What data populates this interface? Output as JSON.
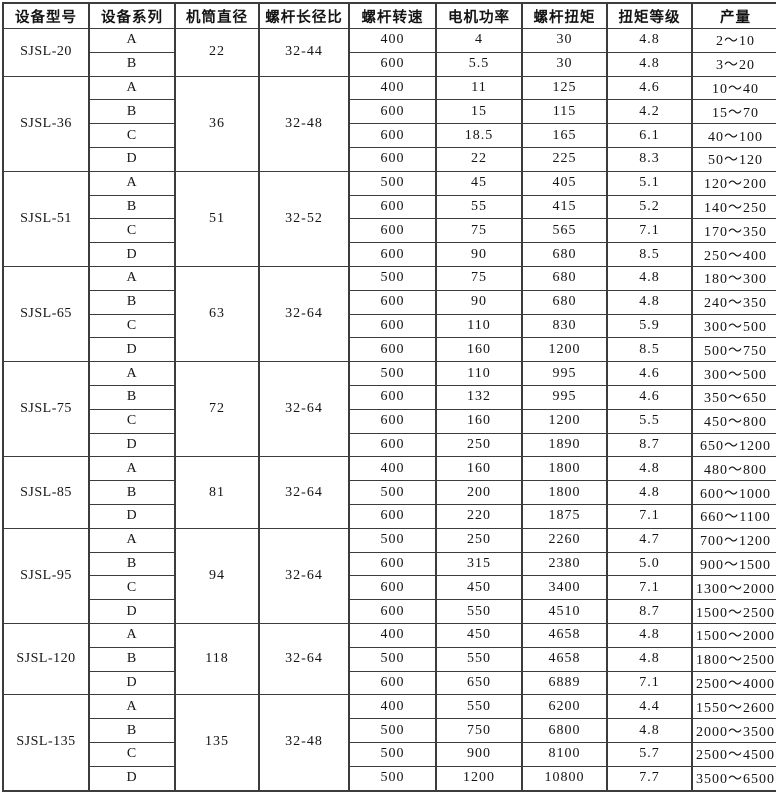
{
  "table": {
    "headers": [
      "设备型号",
      "设备系列",
      "机筒直径",
      "螺杆长径比",
      "螺杆转速",
      "电机功率",
      "螺杆扭矩",
      "扭矩等级",
      "产量"
    ],
    "border_color": "#3c3c3c",
    "background_color": "#ffffff",
    "groups": [
      {
        "model": "SJSL-20",
        "diameter": "22",
        "ratio": "32-44",
        "rows": [
          {
            "series": "A",
            "speed": "400",
            "power": "4",
            "torque": "30",
            "grade": "4.8",
            "output": "2～10"
          },
          {
            "series": "B",
            "speed": "600",
            "power": "5.5",
            "torque": "30",
            "grade": "4.8",
            "output": "3～20"
          }
        ]
      },
      {
        "model": "SJSL-36",
        "diameter": "36",
        "ratio": "32-48",
        "rows": [
          {
            "series": "A",
            "speed": "400",
            "power": "11",
            "torque": "125",
            "grade": "4.6",
            "output": "10～40"
          },
          {
            "series": "B",
            "speed": "600",
            "power": "15",
            "torque": "115",
            "grade": "4.2",
            "output": "15～70"
          },
          {
            "series": "C",
            "speed": "600",
            "power": "18.5",
            "torque": "165",
            "grade": "6.1",
            "output": "40～100"
          },
          {
            "series": "D",
            "speed": "600",
            "power": "22",
            "torque": "225",
            "grade": "8.3",
            "output": "50～120"
          }
        ]
      },
      {
        "model": "SJSL-51",
        "diameter": "51",
        "ratio": "32-52",
        "rows": [
          {
            "series": "A",
            "speed": "500",
            "power": "45",
            "torque": "405",
            "grade": "5.1",
            "output": "120～200"
          },
          {
            "series": "B",
            "speed": "600",
            "power": "55",
            "torque": "415",
            "grade": "5.2",
            "output": "140～250"
          },
          {
            "series": "C",
            "speed": "600",
            "power": "75",
            "torque": "565",
            "grade": "7.1",
            "output": "170～350"
          },
          {
            "series": "D",
            "speed": "600",
            "power": "90",
            "torque": "680",
            "grade": "8.5",
            "output": "250～400"
          }
        ]
      },
      {
        "model": "SJSL-65",
        "diameter": "63",
        "ratio": "32-64",
        "rows": [
          {
            "series": "A",
            "speed": "500",
            "power": "75",
            "torque": "680",
            "grade": "4.8",
            "output": "180～300"
          },
          {
            "series": "B",
            "speed": "600",
            "power": "90",
            "torque": "680",
            "grade": "4.8",
            "output": "240～350"
          },
          {
            "series": "C",
            "speed": "600",
            "power": "110",
            "torque": "830",
            "grade": "5.9",
            "output": "300～500"
          },
          {
            "series": "D",
            "speed": "600",
            "power": "160",
            "torque": "1200",
            "grade": "8.5",
            "output": "500～750"
          }
        ]
      },
      {
        "model": "SJSL-75",
        "diameter": "72",
        "ratio": "32-64",
        "rows": [
          {
            "series": "A",
            "speed": "500",
            "power": "110",
            "torque": "995",
            "grade": "4.6",
            "output": "300～500"
          },
          {
            "series": "B",
            "speed": "600",
            "power": "132",
            "torque": "995",
            "grade": "4.6",
            "output": "350～650"
          },
          {
            "series": "C",
            "speed": "600",
            "power": "160",
            "torque": "1200",
            "grade": "5.5",
            "output": "450～800"
          },
          {
            "series": "D",
            "speed": "600",
            "power": "250",
            "torque": "1890",
            "grade": "8.7",
            "output": "650～1200"
          }
        ]
      },
      {
        "model": "SJSL-85",
        "diameter": "81",
        "ratio": "32-64",
        "rows": [
          {
            "series": "A",
            "speed": "400",
            "power": "160",
            "torque": "1800",
            "grade": "4.8",
            "output": "480～800"
          },
          {
            "series": "B",
            "speed": "500",
            "power": "200",
            "torque": "1800",
            "grade": "4.8",
            "output": "600～1000"
          },
          {
            "series": "D",
            "speed": "600",
            "power": "220",
            "torque": "1875",
            "grade": "7.1",
            "output": "660～1100"
          }
        ]
      },
      {
        "model": "SJSL-95",
        "diameter": "94",
        "ratio": "32-64",
        "rows": [
          {
            "series": "A",
            "speed": "500",
            "power": "250",
            "torque": "2260",
            "grade": "4.7",
            "output": "700～1200"
          },
          {
            "series": "B",
            "speed": "600",
            "power": "315",
            "torque": "2380",
            "grade": "5.0",
            "output": "900～1500"
          },
          {
            "series": "C",
            "speed": "600",
            "power": "450",
            "torque": "3400",
            "grade": "7.1",
            "output": "1300～2000"
          },
          {
            "series": "D",
            "speed": "600",
            "power": "550",
            "torque": "4510",
            "grade": "8.7",
            "output": "1500～2500"
          }
        ]
      },
      {
        "model": "SJSL-120",
        "diameter": "118",
        "ratio": "32-64",
        "rows": [
          {
            "series": "A",
            "speed": "400",
            "power": "450",
            "torque": "4658",
            "grade": "4.8",
            "output": "1500～2000"
          },
          {
            "series": "B",
            "speed": "500",
            "power": "550",
            "torque": "4658",
            "grade": "4.8",
            "output": "1800～2500"
          },
          {
            "series": "D",
            "speed": "600",
            "power": "650",
            "torque": "6889",
            "grade": "7.1",
            "output": "2500～4000"
          }
        ]
      },
      {
        "model": "SJSL-135",
        "diameter": "135",
        "ratio": "32-48",
        "rows": [
          {
            "series": "A",
            "speed": "400",
            "power": "550",
            "torque": "6200",
            "grade": "4.4",
            "output": "1550～2600"
          },
          {
            "series": "B",
            "speed": "500",
            "power": "750",
            "torque": "6800",
            "grade": "4.8",
            "output": "2000～3500"
          },
          {
            "series": "C",
            "speed": "500",
            "power": "900",
            "torque": "8100",
            "grade": "5.7",
            "output": "2500～4500"
          },
          {
            "series": "D",
            "speed": "500",
            "power": "1200",
            "torque": "10800",
            "grade": "7.7",
            "output": "3500～6500"
          }
        ]
      }
    ]
  }
}
